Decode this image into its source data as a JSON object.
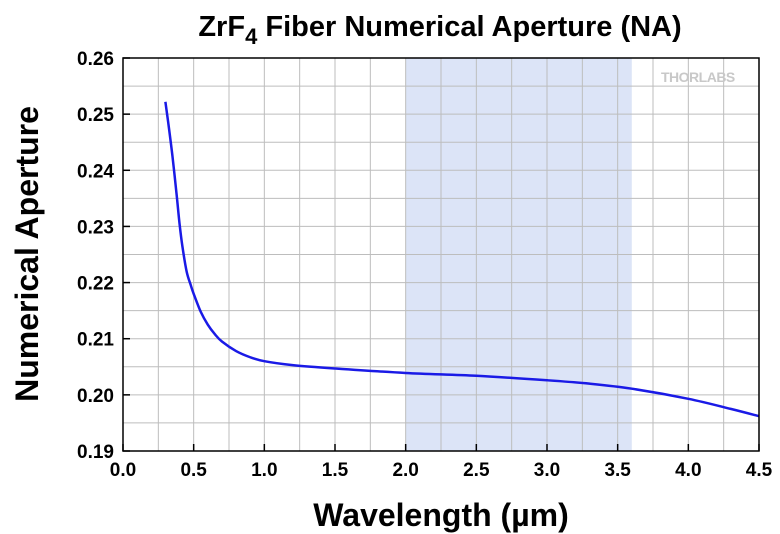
{
  "chart_data": {
    "type": "line",
    "title_main": "ZrF",
    "title_sub": "4",
    "title_rest": " Fiber Numerical Aperture (NA)",
    "xlabel": "Wavelength (µm)",
    "ylabel": "Numerical Aperture",
    "xlim": [
      0.0,
      4.5
    ],
    "ylim": [
      0.19,
      0.26
    ],
    "xticks": [
      "0.0",
      "0.5",
      "1.0",
      "1.5",
      "2.0",
      "2.5",
      "3.0",
      "3.5",
      "4.0",
      "4.5"
    ],
    "yticks": [
      "0.19",
      "0.20",
      "0.21",
      "0.22",
      "0.23",
      "0.24",
      "0.25",
      "0.26"
    ],
    "grid": true,
    "highlight_band": {
      "x_start": 2.0,
      "x_end": 3.6,
      "color": "#dce4f7"
    },
    "series": [
      {
        "color": "#1a1ae6",
        "x": [
          0.3,
          0.32,
          0.35,
          0.38,
          0.4,
          0.42,
          0.45,
          0.48,
          0.5,
          0.55,
          0.6,
          0.65,
          0.7,
          0.8,
          0.9,
          1.0,
          1.2,
          1.5,
          2.0,
          2.5,
          3.0,
          3.3,
          3.6,
          4.0,
          4.3,
          4.5
        ],
        "y": [
          0.2522,
          0.2485,
          0.2425,
          0.2355,
          0.2305,
          0.2265,
          0.222,
          0.2195,
          0.218,
          0.2148,
          0.2125,
          0.2108,
          0.2095,
          0.2078,
          0.2067,
          0.206,
          0.2053,
          0.2047,
          0.2039,
          0.2034,
          0.2026,
          0.202,
          0.2011,
          0.1993,
          0.1975,
          0.1962
        ]
      }
    ]
  },
  "logo": {
    "text": "THORLABS"
  }
}
